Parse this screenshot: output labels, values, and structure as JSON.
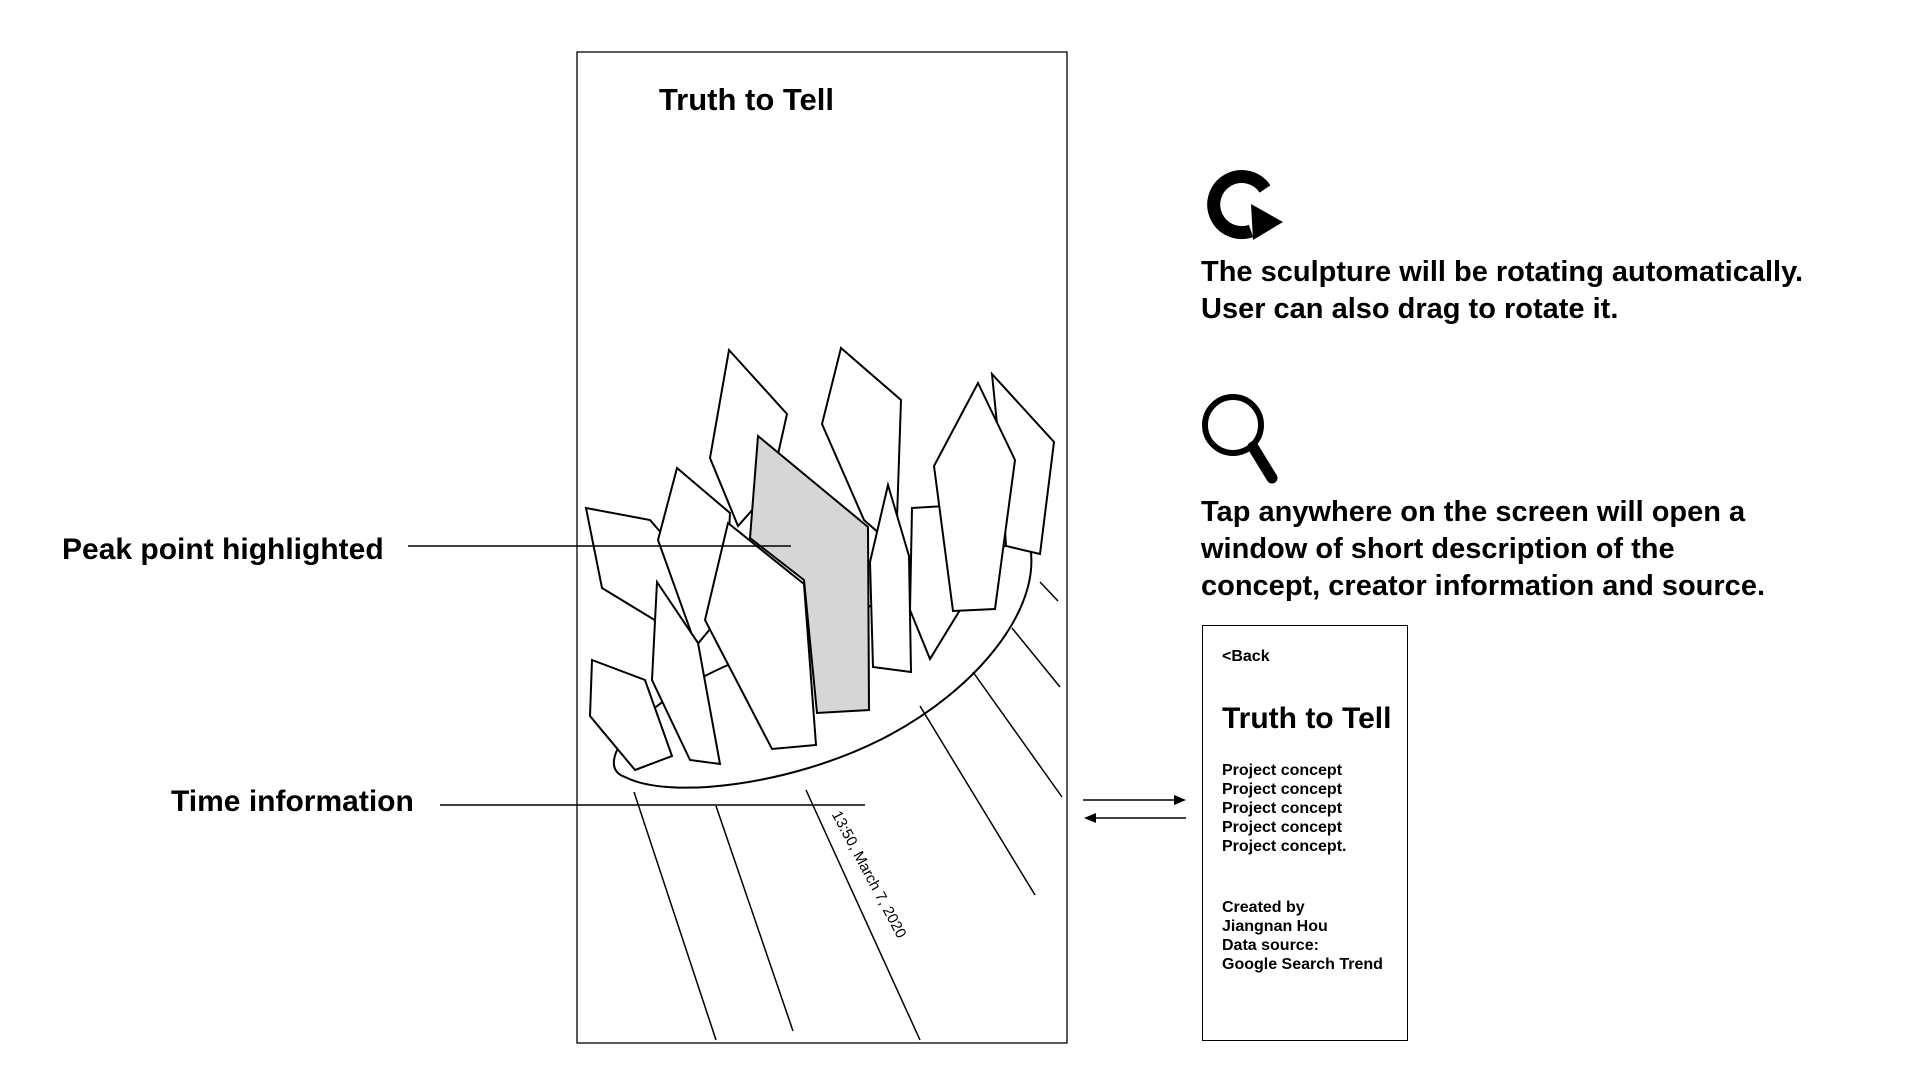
{
  "phone": {
    "title": "Truth to Tell",
    "timestamp": "13:50, March 7, 2020"
  },
  "callouts": {
    "peak": "Peak point highlighted",
    "time": "Time information"
  },
  "rotate_note": {
    "icon": "rotate-icon",
    "lines": [
      "The sculpture will be rotating automatically.",
      "User can also drag to rotate it."
    ]
  },
  "tap_note": {
    "icon": "magnifier-icon",
    "lines": [
      "Tap anywhere on the screen will open a",
      "window of short description of the",
      "concept, creator information and source."
    ]
  },
  "detail_screen": {
    "back": "<Back",
    "title": "Truth to Tell",
    "concept_lines": [
      "Project concept",
      "Project concept",
      "Project concept",
      "Project concept",
      "Project concept."
    ],
    "credit_lines": [
      "Created by",
      "Jiangnan Hou",
      "Data source:",
      "Google Search Trend"
    ]
  },
  "colors": {
    "highlight": "#d6d6d6",
    "stroke": "#000000"
  }
}
